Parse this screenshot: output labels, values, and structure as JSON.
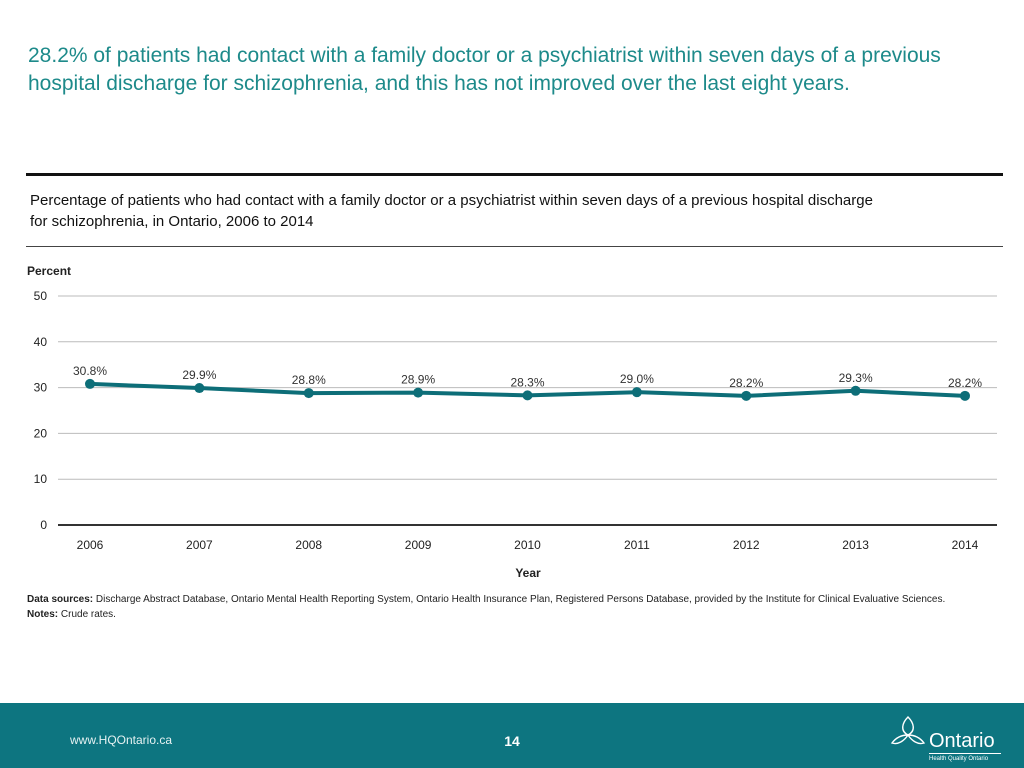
{
  "headline": "28.2% of patients had contact with a family doctor or a psychiatrist within seven days of a previous hospital discharge for schizophrenia, and this has not improved over the last eight years.",
  "chart_data": {
    "type": "line",
    "title": "Percentage of patients who had contact with a family doctor or a psychiatrist within seven days of a previous hospital discharge for schizophrenia, in Ontario, 2006 to 2014",
    "ylabel": "Percent",
    "xlabel": "Year",
    "ylim": [
      0,
      50
    ],
    "yticks": [
      0,
      10,
      20,
      30,
      40,
      50
    ],
    "grid": true,
    "categories": [
      "2006",
      "2007",
      "2008",
      "2009",
      "2010",
      "2011",
      "2012",
      "2013",
      "2014"
    ],
    "values": [
      30.8,
      29.9,
      28.8,
      28.9,
      28.3,
      29.0,
      28.2,
      29.3,
      28.2
    ],
    "data_labels": [
      "30.8%",
      "29.9%",
      "28.8%",
      "28.9%",
      "28.3%",
      "29.0%",
      "28.2%",
      "29.3%",
      "28.2%"
    ],
    "line_color": "#0d6e78"
  },
  "notes": {
    "sources_label": "Data sources:",
    "sources_text": " Discharge Abstract Database, Ontario Mental Health Reporting System, Ontario Health Insurance Plan, Registered Persons Database, provided by the Institute for Clinical Evaluative Sciences.",
    "notes_label": "Notes:",
    "notes_text": " Crude rates."
  },
  "footer": {
    "url": "www.HQOntario.ca",
    "page_number": "14",
    "logo_word": "Ontario",
    "logo_tagline": "Health Quality Ontario",
    "logo_icon": "trillium-icon"
  },
  "colors": {
    "teal_text": "#1d8a8a",
    "footer_bg": "#0d7580"
  }
}
